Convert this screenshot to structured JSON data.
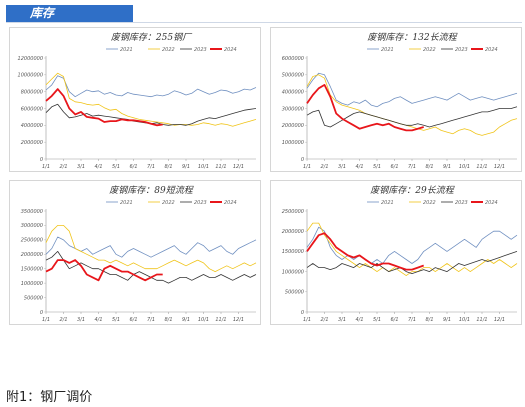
{
  "header": {
    "title": "库存"
  },
  "footnote": "附1：钢厂调价",
  "colors": {
    "2021": "#6f8fc0",
    "2022": "#f0c419",
    "2023": "#333333",
    "2024": "#e8161b"
  },
  "chart_data": [
    {
      "type": "line",
      "title": "废钢库存：255钢厂",
      "ylim": [
        0,
        12000000
      ],
      "yticks": [
        "0",
        "2000000",
        "4000000",
        "6000000",
        "8000000",
        "10000000",
        "12000000"
      ],
      "xticks": [
        "1/1",
        "2/1",
        "3/1",
        "4/1",
        "5/1",
        "6/1",
        "7/1",
        "8/1",
        "9/1",
        "10/1",
        "11/1",
        "12/1"
      ],
      "legend": [
        "2021",
        "2022",
        "2023",
        "2024"
      ],
      "series": [
        {
          "name": "2021",
          "values": [
            8200000,
            8800000,
            9900000,
            9600000,
            8000000,
            7400000,
            7800000,
            8200000,
            8000000,
            8100000,
            7700000,
            7900000,
            7600000,
            7500000,
            7900000,
            7700000,
            7600000,
            7500000,
            7400000,
            7600000,
            7500000,
            7700000,
            8100000,
            7900000,
            7600000,
            7800000,
            8300000,
            8000000,
            7700000,
            7900000,
            8200000,
            8100000,
            7800000,
            8000000,
            8300000,
            8200000,
            8500000
          ]
        },
        {
          "name": "2022",
          "values": [
            8800000,
            9500000,
            10200000,
            9800000,
            7200000,
            6800000,
            6700000,
            6500000,
            6400000,
            6500000,
            6100000,
            5800000,
            5900000,
            5400000,
            5100000,
            4900000,
            4700000,
            4600000,
            4500000,
            4400000,
            4300000,
            4200000,
            4000000,
            4100000,
            4100000,
            4000000,
            4100000,
            4300000,
            4200000,
            4000000,
            4200000,
            4100000,
            3900000,
            4100000,
            4300000,
            4500000,
            4700000
          ]
        },
        {
          "name": "2023",
          "values": [
            5500000,
            6200000,
            6500000,
            5600000,
            4900000,
            5000000,
            5200000,
            5400000,
            5100000,
            5200000,
            5100000,
            5000000,
            4900000,
            4800000,
            4700000,
            4500000,
            4400000,
            4300000,
            4200000,
            4300000,
            4100000,
            4000000,
            4100000,
            4100000,
            4000000,
            4200000,
            4500000,
            4700000,
            4900000,
            4800000,
            5000000,
            5200000,
            5400000,
            5600000,
            5800000,
            5900000,
            6000000
          ]
        },
        {
          "name": "2024",
          "values": [
            6900000,
            7500000,
            8300000,
            7500000,
            6000000,
            5300000,
            5600000,
            5000000,
            4900000,
            4800000,
            4400000,
            4500000,
            4500000,
            4700000,
            4600000,
            4600000,
            4500000,
            4400000,
            4200000,
            4000000,
            4100000
          ]
        }
      ]
    },
    {
      "type": "line",
      "title": "废钢库存：132长流程",
      "ylim": [
        0,
        6000000
      ],
      "yticks": [
        "0",
        "1000000",
        "2000000",
        "3000000",
        "4000000",
        "5000000",
        "6000000"
      ],
      "xticks": [
        "1/1",
        "2/1",
        "3/1",
        "4/1",
        "5/1",
        "6/1",
        "7/1",
        "8/1",
        "9/1",
        "10/1",
        "11/1",
        "12/1"
      ],
      "legend": [
        "2021",
        "2022",
        "2023",
        "2024"
      ],
      "series": [
        {
          "name": "2021",
          "values": [
            4200000,
            4700000,
            5100000,
            5000000,
            4300000,
            3500000,
            3300000,
            3200000,
            3400000,
            3300000,
            3500000,
            3200000,
            3100000,
            3300000,
            3400000,
            3600000,
            3700000,
            3500000,
            3300000,
            3400000,
            3500000,
            3600000,
            3700000,
            3600000,
            3500000,
            3700000,
            3900000,
            3700000,
            3500000,
            3600000,
            3700000,
            3600000,
            3500000,
            3600000,
            3700000,
            3800000,
            3900000
          ]
        },
        {
          "name": "2022",
          "values": [
            4300000,
            4900000,
            5000000,
            4800000,
            3800000,
            3400000,
            3200000,
            3100000,
            3000000,
            2900000,
            2700000,
            2600000,
            2500000,
            2400000,
            2300000,
            2200000,
            2100000,
            2000000,
            1900000,
            1800000,
            1700000,
            1800000,
            1900000,
            1700000,
            1600000,
            1500000,
            1700000,
            1800000,
            1700000,
            1500000,
            1400000,
            1500000,
            1600000,
            1900000,
            2100000,
            2300000,
            2400000
          ]
        },
        {
          "name": "2023",
          "values": [
            2600000,
            2800000,
            2900000,
            2000000,
            1900000,
            2100000,
            2300000,
            2500000,
            2700000,
            2800000,
            2700000,
            2600000,
            2500000,
            2400000,
            2300000,
            2200000,
            2100000,
            2000000,
            2000000,
            2100000,
            2000000,
            1900000,
            2000000,
            2100000,
            2200000,
            2300000,
            2400000,
            2500000,
            2600000,
            2700000,
            2800000,
            2800000,
            2900000,
            3000000,
            3000000,
            3000000,
            3100000
          ]
        },
        {
          "name": "2024",
          "values": [
            3300000,
            3800000,
            4200000,
            4400000,
            3700000,
            2700000,
            2400000,
            2200000,
            2000000,
            1800000,
            1900000,
            2000000,
            2100000,
            2000000,
            2100000,
            1900000,
            1800000,
            1700000,
            1700000,
            1800000,
            1900000
          ]
        }
      ]
    },
    {
      "type": "line",
      "title": "废钢库存：89短流程",
      "ylim": [
        0,
        3500000
      ],
      "yticks": [
        "0",
        "500000",
        "1000000",
        "1500000",
        "2000000",
        "2500000",
        "3000000",
        "3500000"
      ],
      "xticks": [
        "1/1",
        "2/1",
        "3/1",
        "4/1",
        "5/1",
        "6/1",
        "7/1",
        "8/1",
        "9/1",
        "10/1",
        "11/1",
        "12/1"
      ],
      "legend": [
        "2021",
        "2022",
        "2023",
        "2024"
      ],
      "series": [
        {
          "name": "2021",
          "values": [
            2000000,
            2200000,
            2600000,
            2500000,
            2300000,
            2200000,
            2100000,
            2200000,
            2000000,
            2100000,
            2200000,
            2300000,
            2000000,
            1900000,
            2100000,
            2200000,
            2100000,
            2000000,
            1900000,
            2000000,
            2100000,
            2200000,
            2300000,
            2100000,
            2000000,
            2200000,
            2400000,
            2300000,
            2100000,
            2200000,
            2300000,
            2100000,
            2000000,
            2200000,
            2300000,
            2400000,
            2500000
          ]
        },
        {
          "name": "2022",
          "values": [
            2400000,
            2800000,
            3000000,
            3000000,
            2800000,
            2200000,
            2100000,
            2000000,
            1900000,
            1800000,
            1800000,
            1700000,
            1800000,
            1700000,
            1600000,
            1700000,
            1600000,
            1500000,
            1500000,
            1500000,
            1600000,
            1700000,
            1800000,
            1700000,
            1600000,
            1700000,
            1800000,
            1700000,
            1500000,
            1400000,
            1500000,
            1600000,
            1500000,
            1600000,
            1700000,
            1600000,
            1700000
          ]
        },
        {
          "name": "2023",
          "values": [
            1800000,
            1900000,
            2100000,
            1800000,
            1500000,
            1600000,
            1700000,
            1600000,
            1500000,
            1500000,
            1400000,
            1300000,
            1300000,
            1200000,
            1100000,
            1300000,
            1400000,
            1300000,
            1200000,
            1100000,
            1100000,
            1000000,
            1100000,
            1200000,
            1200000,
            1100000,
            1200000,
            1300000,
            1200000,
            1200000,
            1300000,
            1200000,
            1100000,
            1200000,
            1300000,
            1200000,
            1300000
          ]
        },
        {
          "name": "2024",
          "values": [
            1400000,
            1500000,
            1800000,
            1800000,
            1700000,
            1800000,
            1600000,
            1300000,
            1200000,
            1100000,
            1500000,
            1600000,
            1500000,
            1400000,
            1400000,
            1300000,
            1200000,
            1100000,
            1200000,
            1300000,
            1300000
          ]
        }
      ]
    },
    {
      "type": "line",
      "title": "废钢库存：29长流程",
      "ylim": [
        0,
        2500000
      ],
      "yticks": [
        "0",
        "500000",
        "1000000",
        "1500000",
        "2000000",
        "2500000"
      ],
      "xticks": [
        "1/1",
        "2/1",
        "3/1",
        "4/1",
        "5/1",
        "6/1",
        "7/1",
        "8/1",
        "9/1",
        "10/1",
        "11/1",
        "12/1"
      ],
      "legend": [
        "2021",
        "2022",
        "2023",
        "2024"
      ],
      "series": [
        {
          "name": "2021",
          "values": [
            1600000,
            1800000,
            2100000,
            2000000,
            1600000,
            1400000,
            1300000,
            1400000,
            1300000,
            1400000,
            1300000,
            1200000,
            1300000,
            1200000,
            1400000,
            1500000,
            1400000,
            1300000,
            1200000,
            1300000,
            1500000,
            1600000,
            1700000,
            1600000,
            1500000,
            1600000,
            1700000,
            1800000,
            1700000,
            1600000,
            1800000,
            1900000,
            2000000,
            2000000,
            1900000,
            1800000,
            1900000
          ]
        },
        {
          "name": "2022",
          "values": [
            2000000,
            2200000,
            2200000,
            1900000,
            1700000,
            1500000,
            1400000,
            1300000,
            1200000,
            1100000,
            1200000,
            1100000,
            1000000,
            1100000,
            1000000,
            1100000,
            1000000,
            900000,
            1000000,
            1000000,
            1100000,
            1100000,
            1000000,
            1100000,
            1200000,
            1100000,
            1000000,
            1100000,
            1000000,
            1100000,
            1200000,
            1300000,
            1200000,
            1300000,
            1200000,
            1100000,
            1200000
          ]
        },
        {
          "name": "2023",
          "values": [
            1100000,
            1200000,
            1100000,
            1100000,
            1050000,
            1100000,
            1200000,
            1150000,
            1100000,
            1200000,
            1150000,
            1100000,
            1200000,
            1100000,
            1000000,
            1050000,
            1100000,
            1000000,
            950000,
            1000000,
            1050000,
            1000000,
            1100000,
            1050000,
            1000000,
            1100000,
            1200000,
            1150000,
            1200000,
            1250000,
            1300000,
            1250000,
            1300000,
            1350000,
            1400000,
            1450000,
            1500000
          ]
        },
        {
          "name": "2024",
          "values": [
            1500000,
            1700000,
            1900000,
            1950000,
            1800000,
            1600000,
            1500000,
            1400000,
            1350000,
            1400000,
            1300000,
            1200000,
            1150000,
            1200000,
            1200000,
            1150000,
            1100000,
            1050000,
            1050000,
            1100000,
            1150000
          ]
        }
      ]
    }
  ]
}
